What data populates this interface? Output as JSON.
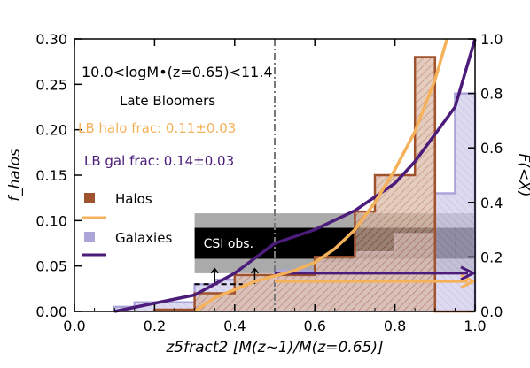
{
  "chart_data": {
    "type": "bar",
    "title": "10.0<logM•(z=0.65)<11.4",
    "subtitle": "Late Bloomers",
    "xlabel": "z5fract2 [M(z~1)/M(z=0.65)]",
    "ylabel_left": "f_halos",
    "ylabel_right": "F(<X)",
    "xlim": [
      0.0,
      1.0
    ],
    "ylim_left": [
      0.0,
      0.3
    ],
    "ylim_right": [
      0.0,
      1.0
    ],
    "x_ticks": [
      "0.0",
      "0.2",
      "0.4",
      "0.6",
      "0.8",
      "1.0"
    ],
    "y_left_ticks": [
      "0.00",
      "0.05",
      "0.10",
      "0.15",
      "0.20",
      "0.25",
      "0.30"
    ],
    "y_right_ticks": [
      "0.0",
      "0.2",
      "0.4",
      "0.6",
      "0.8",
      "1.0"
    ],
    "annotations": {
      "lb_halo_frac": "LB halo frac: 0.11±0.03",
      "lb_gal_frac": "LB gal frac: 0.14±0.03",
      "csi_obs": "CSI obs."
    },
    "legend": [
      {
        "name": "Halos",
        "color": "#a0522d"
      },
      {
        "name": "Galaxies",
        "color": "#a9a2d6"
      }
    ],
    "colors": {
      "halo": "#a0522d",
      "halo_cdf": "#f5b25a",
      "galaxy": "#aba5d8",
      "galaxy_cdf": "#4b1c7a",
      "csi_inner": "#000000",
      "csi_outer": "#aaaaaa"
    },
    "bin_edges": [
      0.0,
      0.1,
      0.2,
      0.3,
      0.4,
      0.5,
      0.6,
      0.7,
      0.8,
      0.9,
      1.0
    ],
    "series": [
      {
        "name": "Halos",
        "histogram_steps": [
          [
            0.2,
            0.3,
            0.002
          ],
          [
            0.3,
            0.4,
            0.02
          ],
          [
            0.4,
            0.5,
            0.04
          ],
          [
            0.5,
            0.6,
            0.04
          ],
          [
            0.6,
            0.7,
            0.06
          ],
          [
            0.7,
            0.75,
            0.11
          ],
          [
            0.75,
            0.85,
            0.15
          ],
          [
            0.85,
            0.9,
            0.28
          ],
          [
            0.9,
            1.0,
            0.0
          ]
        ]
      },
      {
        "name": "Galaxies",
        "histogram_steps": [
          [
            0.1,
            0.15,
            0.005
          ],
          [
            0.15,
            0.3,
            0.01
          ],
          [
            0.3,
            0.35,
            0.03
          ],
          [
            0.35,
            0.4,
            0.035
          ],
          [
            0.4,
            0.5,
            0.04
          ],
          [
            0.5,
            0.6,
            0.045
          ],
          [
            0.6,
            0.7,
            0.055
          ],
          [
            0.7,
            0.8,
            0.065
          ],
          [
            0.8,
            0.9,
            0.085
          ],
          [
            0.9,
            0.95,
            0.13
          ],
          [
            0.95,
            1.0,
            0.24
          ]
        ]
      }
    ],
    "cdf_halo": {
      "x": [
        0.3,
        0.35,
        0.4,
        0.45,
        0.5,
        0.55,
        0.6,
        0.65,
        0.7,
        0.75,
        0.8,
        0.85,
        0.9,
        0.93
      ],
      "y": [
        0.0,
        0.05,
        0.08,
        0.11,
        0.13,
        0.15,
        0.18,
        0.23,
        0.3,
        0.4,
        0.52,
        0.66,
        0.85,
        1.0
      ]
    },
    "cdf_galaxy": {
      "x": [
        0.1,
        0.2,
        0.3,
        0.35,
        0.4,
        0.5,
        0.6,
        0.7,
        0.8,
        0.85,
        0.9,
        0.95,
        1.0
      ],
      "y": [
        0.0,
        0.03,
        0.06,
        0.1,
        0.14,
        0.25,
        0.3,
        0.37,
        0.47,
        0.55,
        0.65,
        0.75,
        1.0
      ]
    },
    "csi_obs": {
      "x_start": 0.3,
      "y_left_center": 0.075,
      "y_left_inner": [
        0.058,
        0.092
      ],
      "y_left_outer": [
        0.042,
        0.108
      ]
    },
    "vertical_line_x": 0.5,
    "lb_fraction_lines": [
      {
        "name": "halo",
        "x_start": 0.5,
        "y_right": 0.11
      },
      {
        "name": "galaxy",
        "x_start": 0.5,
        "y_right": 0.14
      }
    ],
    "upper_limit_arrows_x": [
      0.35,
      0.45
    ],
    "grid": false
  }
}
